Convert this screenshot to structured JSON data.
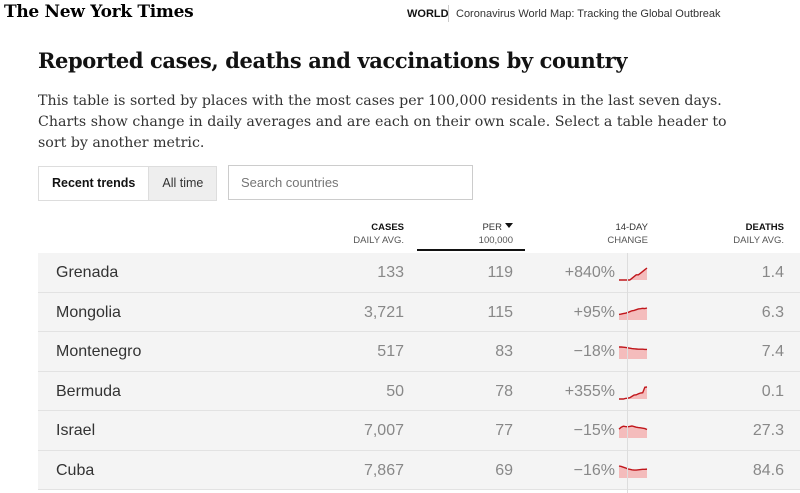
{
  "header": {
    "logo": "The New York Times",
    "section": "WORLD",
    "article_title": "Coronavirus World Map: Tracking the Global Outbreak"
  },
  "page": {
    "title": "Reported cases, deaths and vaccinations by country",
    "intro": "This table is sorted by places with the most cases per 100,000 residents in the last seven days. Charts show change in daily averages and are each on their own scale. Select a table header to sort by another metric."
  },
  "tabs": [
    {
      "label": "Recent trends",
      "active": true
    },
    {
      "label": "All time",
      "active": false
    }
  ],
  "search": {
    "placeholder": "Search countries"
  },
  "columns": {
    "cases": {
      "line1": "CASES",
      "line2": "DAILY AVG."
    },
    "per": {
      "line1": "PER",
      "line2": "100,000"
    },
    "change": {
      "line1": "14-DAY",
      "line2": "CHANGE"
    },
    "deaths": {
      "line1": "DEATHS",
      "line2": "DAILY AVG."
    }
  },
  "colors": {
    "spark_line": "#c0161b",
    "spark_fill": "#f4bcbc"
  },
  "rows": [
    {
      "country": "Grenada",
      "cases": "133",
      "per": "119",
      "change": "+840%",
      "deaths": "1.4",
      "trend": [
        0,
        0,
        0,
        0,
        0,
        0,
        1,
        2,
        3,
        3,
        4,
        5,
        6,
        7
      ]
    },
    {
      "country": "Mongolia",
      "cases": "3,721",
      "per": "115",
      "change": "+95%",
      "deaths": "6.3",
      "trend": [
        3,
        3.2,
        3.5,
        3.7,
        4,
        4.5,
        5,
        5.2,
        5.6,
        6,
        6.1,
        6.3,
        6.2,
        6.5
      ]
    },
    {
      "country": "Montenegro",
      "cases": "517",
      "per": "83",
      "change": "−18%",
      "deaths": "7.4",
      "trend": [
        6,
        6,
        5.9,
        5.8,
        5.6,
        5.4,
        5.2,
        5.1,
        5,
        4.9,
        4.9,
        4.9,
        4.8,
        4.8
      ]
    },
    {
      "country": "Bermuda",
      "cases": "50",
      "per": "78",
      "change": "+355%",
      "deaths": "0.1",
      "trend": [
        0,
        0,
        0,
        0.2,
        0.3,
        0.5,
        1,
        1.5,
        1.6,
        2,
        2.3,
        2.4,
        4.5,
        4.6
      ]
    },
    {
      "country": "Israel",
      "cases": "7,007",
      "per": "77",
      "change": "−15%",
      "deaths": "27.3",
      "trend": [
        4.5,
        5.5,
        6,
        5.8,
        5.7,
        5.9,
        6.1,
        5.8,
        5.5,
        5.3,
        5.2,
        5.0,
        4.8,
        4.3
      ]
    },
    {
      "country": "Cuba",
      "cases": "7,867",
      "per": "69",
      "change": "−16%",
      "deaths": "84.6",
      "trend": [
        5,
        4.8,
        4.5,
        4.2,
        3.8,
        3.6,
        3.4,
        3.3,
        3.3,
        3.4,
        3.5,
        3.6,
        3.6,
        3.7
      ]
    }
  ]
}
